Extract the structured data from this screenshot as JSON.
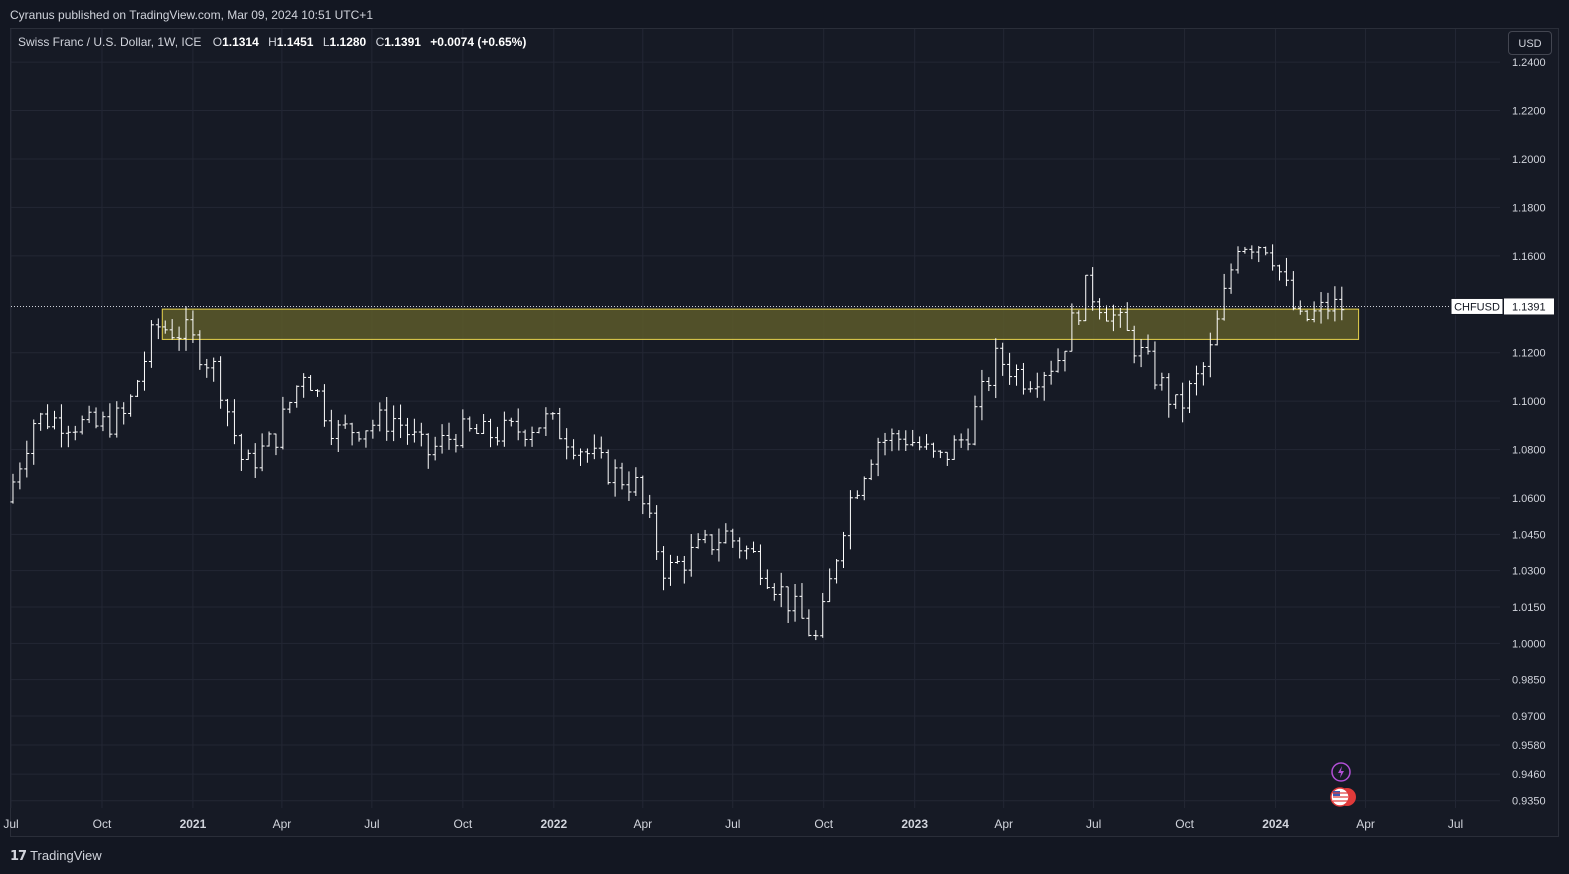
{
  "header": {
    "publisher": "Cyranus published on TradingView.com, Mar 09, 2024 10:51 UTC+1"
  },
  "legend": {
    "symbol": "Swiss Franc / U.S. Dollar, 1W, ICE",
    "open_label": "O",
    "open": "1.1314",
    "high_label": "H",
    "high": "1.1451",
    "low_label": "L",
    "low": "1.1280",
    "close_label": "C",
    "close": "1.1391",
    "change": "+0.0074 (+0.65%)"
  },
  "currency_button": "USD",
  "footer": {
    "brand": "TradingView",
    "brand_icon": "tradingview-logo-icon"
  },
  "colors": {
    "background": "#161a25",
    "bars": "#ffffff",
    "zone_fill": "#5c5a2a",
    "zone_border": "#e8d44d",
    "price_label": "#ffffff"
  },
  "icons": [
    "lightning-icon",
    "us-flag-icon"
  ],
  "chart_data": {
    "type": "ohlc",
    "title": "Swiss Franc / U.S. Dollar, 1W, ICE",
    "y_ticks": [
      "1.2400",
      "1.2200",
      "1.2000",
      "1.1800",
      "1.1600",
      "1.1200",
      "1.1000",
      "1.0800",
      "1.0600",
      "1.0450",
      "1.0300",
      "1.0150",
      "1.0000",
      "0.9850",
      "0.9700",
      "0.9580",
      "0.9460",
      "0.9350"
    ],
    "x_ticks": [
      "Jul",
      "Oct",
      "2021",
      "Apr",
      "Jul",
      "Oct",
      "2022",
      "Apr",
      "Jul",
      "Oct",
      "2023",
      "Apr",
      "Jul",
      "Oct",
      "2024",
      "Apr",
      "Jul"
    ],
    "x_range": [
      "2020-07-01",
      "2024-08-15"
    ],
    "y_range": [
      0.932,
      1.245
    ],
    "last_price": {
      "symbol": "CHFUSD",
      "value": "1.1391"
    },
    "zone": {
      "start": "2020-12-01",
      "end": "2024-03-25",
      "y_low": 1.1255,
      "y_high": 1.138
    },
    "grid": true,
    "series_close": [
      [
        "2020-07-01",
        1.056
      ],
      [
        "2020-08-01",
        1.093
      ],
      [
        "2020-09-01",
        1.092
      ],
      [
        "2020-10-01",
        1.089
      ],
      [
        "2020-11-01",
        1.094
      ],
      [
        "2020-12-01",
        1.131
      ],
      [
        "2021-01-01",
        1.128
      ],
      [
        "2021-02-01",
        1.112
      ],
      [
        "2021-03-01",
        1.072
      ],
      [
        "2021-04-01",
        1.085
      ],
      [
        "2021-05-01",
        1.114
      ],
      [
        "2021-06-01",
        1.087
      ],
      [
        "2021-07-01",
        1.09
      ],
      [
        "2021-08-01",
        1.093
      ],
      [
        "2021-09-01",
        1.078
      ],
      [
        "2021-10-01",
        1.087
      ],
      [
        "2021-11-01",
        1.086
      ],
      [
        "2021-12-01",
        1.088
      ],
      [
        "2022-01-01",
        1.092
      ],
      [
        "2022-02-01",
        1.082
      ],
      [
        "2022-03-01",
        1.072
      ],
      [
        "2022-04-01",
        1.065
      ],
      [
        "2022-05-01",
        1.029
      ],
      [
        "2022-06-01",
        1.038
      ],
      [
        "2022-07-01",
        1.045
      ],
      [
        "2022-08-01",
        1.035
      ],
      [
        "2022-09-01",
        1.018
      ],
      [
        "2022-10-01",
        1.001
      ],
      [
        "2022-11-01",
        1.057
      ],
      [
        "2022-12-01",
        1.084
      ],
      [
        "2023-01-01",
        1.085
      ],
      [
        "2023-02-01",
        1.075
      ],
      [
        "2023-03-01",
        1.086
      ],
      [
        "2023-04-01",
        1.118
      ],
      [
        "2023-05-01",
        1.109
      ],
      [
        "2023-06-01",
        1.117
      ],
      [
        "2023-07-01",
        1.147
      ],
      [
        "2023-08-01",
        1.133
      ],
      [
        "2023-09-01",
        1.115
      ],
      [
        "2023-10-01",
        1.096
      ],
      [
        "2023-11-01",
        1.117
      ],
      [
        "2023-12-01",
        1.166
      ],
      [
        "2024-01-01",
        1.165
      ],
      [
        "2024-02-01",
        1.132
      ],
      [
        "2024-03-01",
        1.139
      ]
    ]
  }
}
